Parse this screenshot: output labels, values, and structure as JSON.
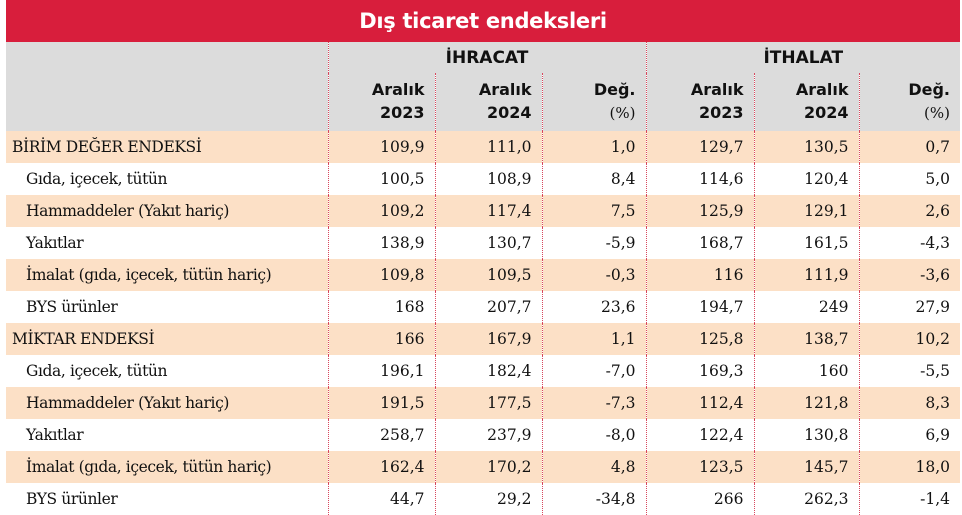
{
  "title": "Dış ticaret endeksleri",
  "groups": {
    "export": "İHRACAT",
    "import": "İTHALAT"
  },
  "columns": [
    {
      "line1": "Aralık",
      "line2": "2023"
    },
    {
      "line1": "Aralık",
      "line2": "2024"
    },
    {
      "line1": "Değ.",
      "line2": "(%)"
    },
    {
      "line1": "Aralık",
      "line2": "2023"
    },
    {
      "line1": "Aralık",
      "line2": "2024"
    },
    {
      "line1": "Değ.",
      "line2": "(%)"
    }
  ],
  "rows": [
    {
      "label": "BİRİM DEĞER ENDEKSİ",
      "main": true,
      "values": [
        "109,9",
        "111,0",
        "1,0",
        "129,7",
        "130,5",
        "0,7"
      ]
    },
    {
      "label": "Gıda, içecek, tütün",
      "main": false,
      "values": [
        "100,5",
        "108,9",
        "8,4",
        "114,6",
        "120,4",
        "5,0"
      ]
    },
    {
      "label": "Hammaddeler (Yakıt hariç)",
      "main": false,
      "values": [
        "109,2",
        "117,4",
        "7,5",
        "125,9",
        "129,1",
        "2,6"
      ]
    },
    {
      "label": "Yakıtlar",
      "main": false,
      "values": [
        "138,9",
        "130,7",
        "-5,9",
        "168,7",
        "161,5",
        "-4,3"
      ]
    },
    {
      "label": "İmalat (gıda, içecek, tütün hariç)",
      "main": false,
      "values": [
        "109,8",
        "109,5",
        "-0,3",
        "116",
        "111,9",
        "-3,6"
      ]
    },
    {
      "label": "BYS ürünler",
      "main": false,
      "values": [
        "168",
        "207,7",
        "23,6",
        "194,7",
        "249",
        "27,9"
      ]
    },
    {
      "label": "MİKTAR ENDEKSİ",
      "main": true,
      "values": [
        "166",
        "167,9",
        "1,1",
        "125,8",
        "138,7",
        "10,2"
      ]
    },
    {
      "label": "Gıda, içecek, tütün",
      "main": false,
      "values": [
        "196,1",
        "182,4",
        "-7,0",
        "169,3",
        "160",
        "-5,5"
      ]
    },
    {
      "label": "Hammaddeler (Yakıt hariç)",
      "main": false,
      "values": [
        "191,5",
        "177,5",
        "-7,3",
        "112,4",
        "121,8",
        "8,3"
      ]
    },
    {
      "label": "Yakıtlar",
      "main": false,
      "values": [
        "258,7",
        "237,9",
        "-8,0",
        "122,4",
        "130,8",
        "6,9"
      ]
    },
    {
      "label": "İmalat (gıda, içecek, tütün hariç)",
      "main": false,
      "values": [
        "162,4",
        "170,2",
        "4,8",
        "123,5",
        "145,7",
        "18,0"
      ]
    },
    {
      "label": "BYS ürünler",
      "main": false,
      "values": [
        "44,7",
        "29,2",
        "-34,8",
        "266",
        "262,3",
        "-1,4"
      ]
    }
  ],
  "colors": {
    "title_bg": "#d81e3c",
    "header_bg": "#dcdcdc",
    "stripe": "#fce0c6",
    "divider": "#d8485e"
  }
}
